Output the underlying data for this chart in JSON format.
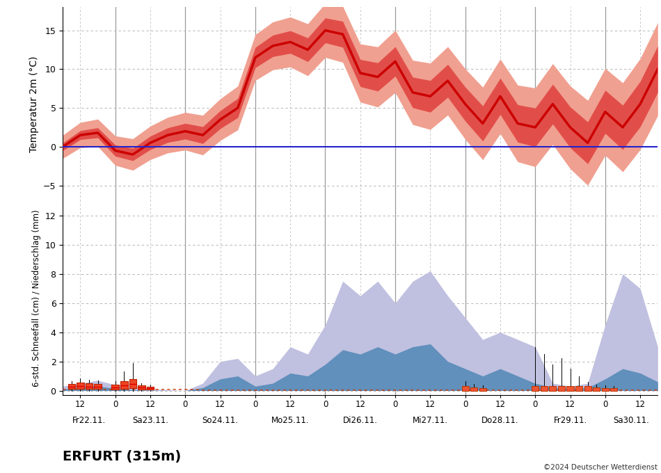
{
  "title_station": "ERFURT (315m)",
  "copyright": "©2024 Deutscher Wetterdienst",
  "temp_ylabel": "Temperatur 2m (°C)",
  "precip_ylabel": "6-std. Schneefall (cm) / Niederschlag (mm)",
  "x_day_labels": [
    "Fr22.11.",
    "Sa23.11.",
    "So24.11.",
    "Mo25.11.",
    "Di26.11.",
    "Mi27.11.",
    "Do28.11.",
    "Fr29.11.",
    "Sa30.11."
  ],
  "temp_ylim": [
    -7,
    18
  ],
  "temp_yticks": [
    -5,
    0,
    5,
    10,
    15
  ],
  "precip_ylim": [
    -0.3,
    13
  ],
  "precip_yticks": [
    0,
    2,
    4,
    6,
    8,
    10,
    12
  ],
  "color_temp_line": "#cc0000",
  "color_temp_fill_inner": "#dd3333",
  "color_temp_fill_outer": "#f0a090",
  "color_zero_line": "#2222cc",
  "color_precip_outer": "#c0c0e0",
  "color_precip_inner": "#6090bb",
  "color_snow_dash": "#cc3300",
  "color_vertical_solid": "#999999",
  "color_grid_dash": "#aaaaaa",
  "background_color": "#ffffff"
}
